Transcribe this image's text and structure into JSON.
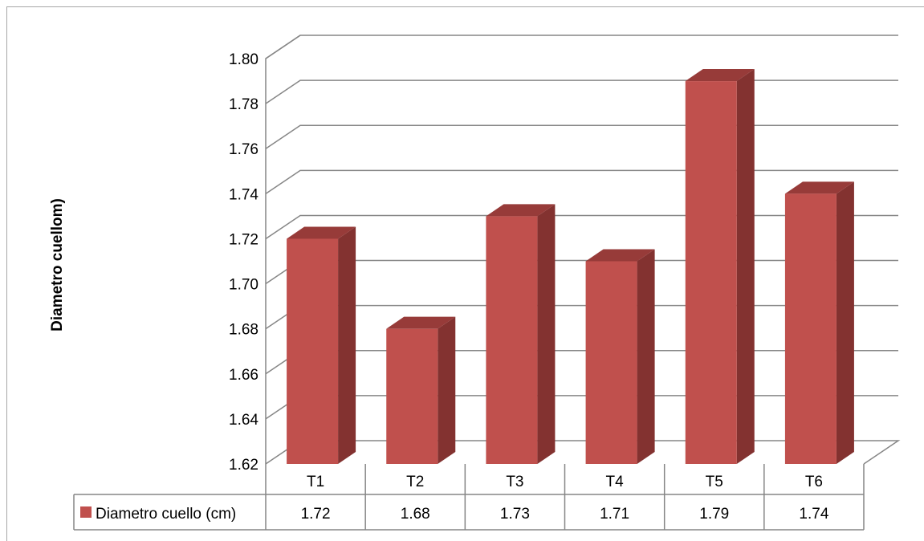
{
  "chart_data": {
    "type": "bar",
    "categories": [
      "T1",
      "T2",
      "T3",
      "T4",
      "T5",
      "T6"
    ],
    "series": [
      {
        "name": "Diametro cuello (cm)",
        "values": [
          1.72,
          1.68,
          1.73,
          1.71,
          1.79,
          1.74
        ],
        "color": "#c0504d"
      }
    ],
    "ylabel": "Diametro cuellom)",
    "ylim": [
      1.62,
      1.8
    ],
    "yticks": [
      "1.62",
      "1.64",
      "1.66",
      "1.68",
      "1.70",
      "1.72",
      "1.74",
      "1.76",
      "1.78",
      "1.80"
    ],
    "grid": true,
    "legend": "data-table",
    "data_table": {
      "series_label": "Diametro cuello (cm)",
      "values": [
        "1.72",
        "1.68",
        "1.73",
        "1.71",
        "1.79",
        "1.74"
      ]
    }
  }
}
